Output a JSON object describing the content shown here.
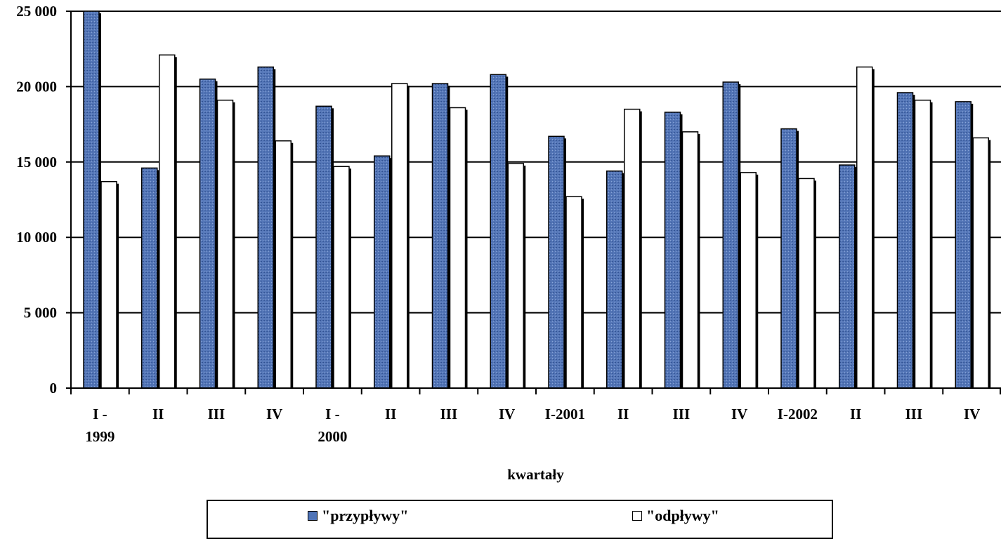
{
  "chart_data": {
    "type": "bar",
    "xlabel": "kwartały",
    "ylabel": "",
    "ylim": [
      0,
      25000
    ],
    "yticks": [
      0,
      5000,
      10000,
      15000,
      20000,
      25000
    ],
    "ytick_labels": [
      "0",
      "5 000",
      "10 000",
      "15 000",
      "20 000",
      "25 000"
    ],
    "grid": true,
    "legend_position": "bottom",
    "categories": [
      "I - 1999",
      "II",
      "III",
      "IV",
      "I - 2000",
      "II",
      "III",
      "IV",
      "I-2001",
      "II",
      "III",
      "IV",
      "I-2002",
      "II",
      "III",
      "IV"
    ],
    "series": [
      {
        "name": "\"przypływy\"",
        "color": "#4f74b8",
        "values": [
          25000,
          14600,
          20500,
          21300,
          18700,
          15400,
          20200,
          20800,
          16700,
          14400,
          18300,
          20300,
          17200,
          14800,
          19600,
          19000
        ]
      },
      {
        "name": "\"odpływy\"",
        "color": "#ffffff",
        "values": [
          13700,
          22100,
          19100,
          16400,
          14700,
          20200,
          18600,
          14900,
          12700,
          18500,
          17000,
          14300,
          13900,
          21300,
          19100,
          16600
        ]
      }
    ]
  }
}
